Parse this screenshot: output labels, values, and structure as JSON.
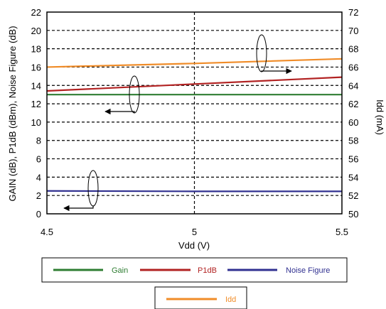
{
  "chart_data": {
    "type": "line",
    "xlabel": "Vdd (V)",
    "ylabel": "GAIN (dB), P1dB (dBm), Noise Figure (dB)",
    "y2label": "Idd (mA)",
    "xlim": [
      4.5,
      5.5
    ],
    "ylim": [
      0,
      22
    ],
    "y2lim": [
      50,
      72
    ],
    "x_ticks": [
      "4.5",
      "5",
      "5.5"
    ],
    "y_ticks": [
      "0",
      "2",
      "4",
      "6",
      "8",
      "10",
      "12",
      "14",
      "16",
      "18",
      "20",
      "22"
    ],
    "y2_ticks": [
      "50",
      "52",
      "54",
      "56",
      "58",
      "60",
      "62",
      "64",
      "66",
      "68",
      "70",
      "72"
    ],
    "grid": true,
    "x": [
      4.5,
      5.0,
      5.5
    ],
    "series": [
      {
        "name": "Gain",
        "axis": "left",
        "color": "#2e7d32",
        "values": [
          13.0,
          13.0,
          13.0
        ]
      },
      {
        "name": "P1dB",
        "axis": "left",
        "color": "#b22222",
        "values": [
          13.4,
          14.15,
          14.9
        ]
      },
      {
        "name": "Noise Figure",
        "axis": "left",
        "color": "#303090",
        "values": [
          2.5,
          2.45,
          2.45
        ]
      },
      {
        "name": "Idd",
        "axis": "right",
        "color": "#f08c28",
        "values": [
          66.0,
          66.4,
          66.9
        ]
      }
    ],
    "legend_rows": [
      [
        "Gain",
        "P1dB",
        "Noise Figure"
      ],
      [
        "Idd"
      ]
    ],
    "legend_position": "bottom",
    "annotations": [
      {
        "type": "ellipse-arrow",
        "series": "Idd",
        "points_to": "right-axis"
      },
      {
        "type": "ellipse-arrow",
        "series": "P1dB",
        "points_to": "left-axis"
      },
      {
        "type": "ellipse-arrow",
        "series": "Noise Figure",
        "points_to": "left-axis"
      }
    ]
  }
}
